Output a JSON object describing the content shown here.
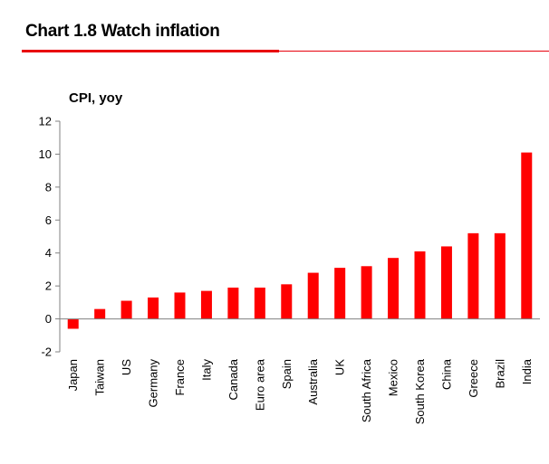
{
  "header": {
    "title": "Chart 1.8 Watch inflation"
  },
  "colors": {
    "accent": "#e8000b",
    "bar": "#ff0000",
    "axis": "#808080"
  },
  "chart_data": {
    "type": "bar",
    "title": "Chart 1.8 Watch inflation",
    "ylabel": "CPI, yoy",
    "xlabel": "",
    "ylim": [
      -2,
      12
    ],
    "yticks": [
      -2,
      0,
      2,
      4,
      6,
      8,
      10,
      12
    ],
    "grid": false,
    "legend": "none",
    "categories": [
      "Japan",
      "Taiwan",
      "US",
      "Germany",
      "France",
      "Italy",
      "Canada",
      "Euro area",
      "Spain",
      "Australia",
      "UK",
      "South Africa",
      "Mexico",
      "South Korea",
      "China",
      "Greece",
      "Brazil",
      "India"
    ],
    "values": [
      -0.6,
      0.6,
      1.1,
      1.3,
      1.6,
      1.7,
      1.9,
      1.9,
      2.1,
      2.8,
      3.1,
      3.2,
      3.7,
      4.1,
      4.4,
      5.2,
      5.2,
      10.1
    ]
  }
}
